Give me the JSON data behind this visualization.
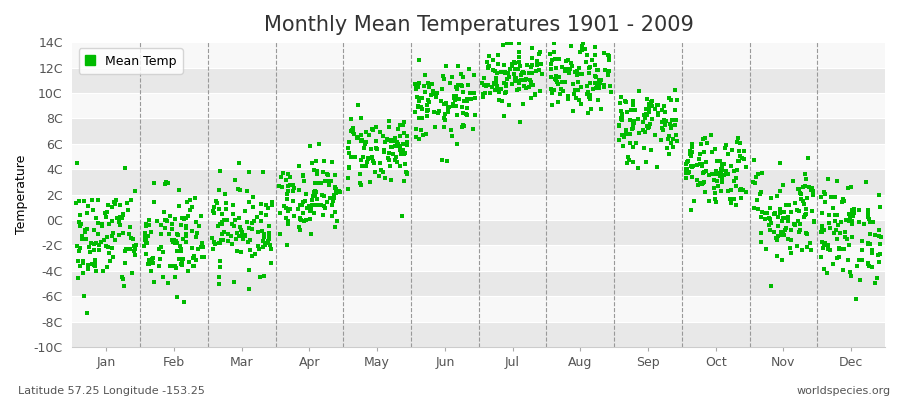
{
  "title": "Monthly Mean Temperatures 1901 - 2009",
  "ylabel": "Temperature",
  "subtitle_left": "Latitude 57.25 Longitude -153.25",
  "subtitle_right": "worldspecies.org",
  "legend_label": "Mean Temp",
  "ylim": [
    -10,
    14
  ],
  "yticks": [
    -10,
    -8,
    -6,
    -4,
    -2,
    0,
    2,
    4,
    6,
    8,
    10,
    12,
    14
  ],
  "ytick_labels": [
    "-10C",
    "-8C",
    "-6C",
    "-4C",
    "-2C",
    "0C",
    "2C",
    "4C",
    "6C",
    "8C",
    "10C",
    "12C",
    "14C"
  ],
  "months": [
    "Jan",
    "Feb",
    "Mar",
    "Apr",
    "May",
    "Jun",
    "Jul",
    "Aug",
    "Sep",
    "Oct",
    "Nov",
    "Dec"
  ],
  "month_means": [
    -1.5,
    -1.8,
    -0.5,
    2.0,
    5.5,
    9.0,
    11.5,
    11.0,
    7.5,
    4.0,
    0.5,
    -1.0
  ],
  "month_stds": [
    2.2,
    2.2,
    1.8,
    1.5,
    1.5,
    1.5,
    1.3,
    1.3,
    1.5,
    1.5,
    2.0,
    2.0
  ],
  "n_years": 109,
  "dot_color": "#00bb00",
  "dot_size": 6,
  "background_color": "#ffffff",
  "plot_background": "#f0f0f0",
  "band_color_light": "#f8f8f8",
  "band_color_dark": "#e8e8e8",
  "grid_color": "#ffffff",
  "dashed_line_color": "#999999",
  "title_fontsize": 15,
  "axis_label_fontsize": 9,
  "tick_fontsize": 9,
  "subtitle_fontsize": 8
}
